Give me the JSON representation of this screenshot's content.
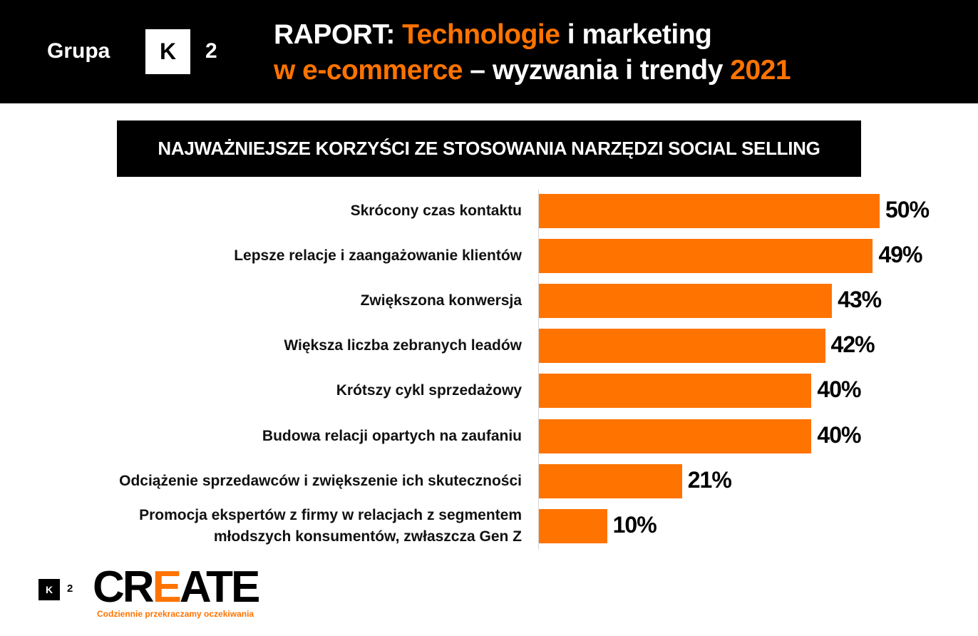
{
  "header": {
    "brand_word": "Grupa",
    "brand_k": "K",
    "brand_2": "2",
    "title_parts": {
      "p1": "RAPORT: ",
      "p2": "Technologie",
      "p3": " i marketing",
      "p4": "w e-commerce",
      "p5": " – wyzwania i trendy ",
      "p6": "2021"
    }
  },
  "chart_title": "NAJWAŻNIEJSZE KORZYŚCI ZE STOSOWANIA NARZĘDZI SOCIAL SELLING",
  "chart_data": {
    "type": "bar",
    "orientation": "horizontal",
    "title": "NAJWAŻNIEJSZE KORZYŚCI ZE STOSOWANIA NARZĘDZI SOCIAL SELLING",
    "categories": [
      "Skrócony czas kontaktu",
      "Lepsze relacje i zaangażowanie klientów",
      "Zwiększona konwersja",
      "Większa liczba zebranych leadów",
      "Krótszy cykl sprzedażowy",
      "Budowa relacji opartych na zaufaniu",
      "Odciążenie sprzedawców i zwiększenie ich skuteczności",
      "Promocja ekspertów z firmy w relacjach z segmentem młodszych konsumentów, zwłaszcza Gen Z"
    ],
    "values": [
      50,
      49,
      43,
      42,
      40,
      40,
      21,
      10
    ],
    "value_labels": [
      "50%",
      "49%",
      "43%",
      "42%",
      "40%",
      "40%",
      "21%",
      "10%"
    ],
    "unit": "%",
    "bar_color": "#ff7300",
    "xlabel": "",
    "ylabel": "",
    "grid": false,
    "legend": null
  },
  "label_lines": [
    [
      "Skrócony czas kontaktu"
    ],
    [
      "Lepsze relacje i zaangażowanie klientów"
    ],
    [
      "Zwiększona konwersja"
    ],
    [
      "Większa liczba zebranych leadów"
    ],
    [
      "Krótszy cykl sprzedażowy"
    ],
    [
      "Budowa relacji opartych na zaufaniu"
    ],
    [
      "Odciążenie sprzedawców i zwiększenie ich skuteczności"
    ],
    [
      "Promocja ekspertów z firmy w relacjach z segmentem",
      "młodszych konsumentów, zwłaszcza Gen Z"
    ]
  ],
  "footer": {
    "k": "K",
    "two": "2",
    "logo_cr": "CR",
    "logo_e": "E",
    "logo_ate": "ATE",
    "tagline": "Codziennie przekraczamy oczekiwania"
  },
  "colors": {
    "accent": "#ff7300",
    "dark": "#000000",
    "background": "#ffffff"
  }
}
